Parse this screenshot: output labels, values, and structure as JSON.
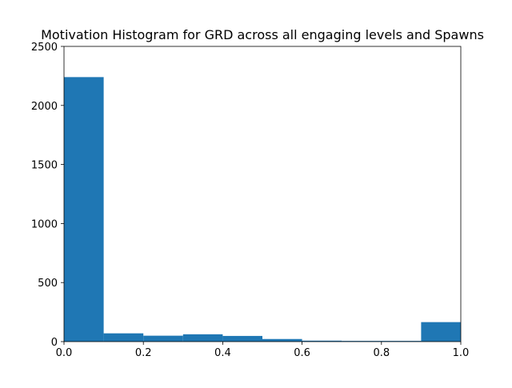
{
  "chart_data": {
    "type": "histogram",
    "title": "Motivation Histogram for GRD across all engaging levels and Spawns",
    "xlabel": "",
    "ylabel": "",
    "xlim": [
      0.0,
      1.0
    ],
    "ylim": [
      0,
      2500
    ],
    "bin_edges": [
      0.0,
      0.1,
      0.2,
      0.3,
      0.4,
      0.5,
      0.6,
      0.7,
      0.8,
      0.9,
      1.0
    ],
    "values": [
      2240,
      70,
      50,
      62,
      48,
      22,
      8,
      6,
      6,
      165
    ],
    "x_ticks": [
      0.0,
      0.2,
      0.4,
      0.6,
      0.8,
      1.0
    ],
    "x_tick_labels": [
      "0.0",
      "0.2",
      "0.4",
      "0.6",
      "0.8",
      "1.0"
    ],
    "y_ticks": [
      0,
      500,
      1000,
      1500,
      2000,
      2500
    ],
    "y_tick_labels": [
      "0",
      "500",
      "1000",
      "1500",
      "2000",
      "2500"
    ],
    "bar_color": "#1f77b4",
    "grid": false,
    "legend": "none"
  }
}
